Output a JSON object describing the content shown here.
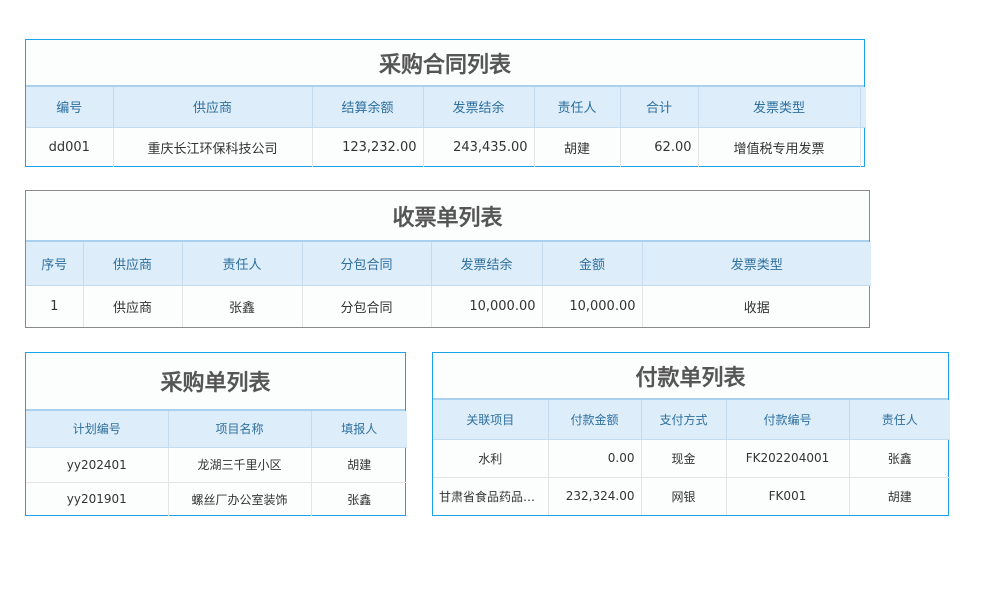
{
  "tables": [
    {
      "title": "采购合同列表",
      "columns": [
        "编号",
        "供应商",
        "结算余额",
        "发票结余",
        "责任人",
        "合计",
        "发票类型",
        ""
      ],
      "rows": [
        [
          "dd001",
          "重庆长江环保科技公司",
          "123,232.00",
          "243,435.00",
          "胡建",
          "62.00",
          "增值税专用发票",
          ""
        ]
      ]
    },
    {
      "title": "收票单列表",
      "columns": [
        "序号",
        "供应商",
        "责任人",
        "分包合同",
        "发票结余",
        "金额",
        "发票类型"
      ],
      "rows": [
        [
          "1",
          "供应商",
          "张鑫",
          "分包合同",
          "10,000.00",
          "10,000.00",
          "收据"
        ]
      ]
    },
    {
      "title": "采购单列表",
      "columns": [
        "计划编号",
        "项目名称",
        "填报人"
      ],
      "rows": [
        [
          "yy202401",
          "龙湖三千里小区",
          "胡建"
        ],
        [
          "yy201901",
          "螺丝厂办公室装饰",
          "张鑫"
        ]
      ]
    },
    {
      "title": "付款单列表",
      "columns": [
        "关联项目",
        "付款金额",
        "支付方式",
        "付款编号",
        "责任人"
      ],
      "rows": [
        [
          "水利",
          "0.00",
          "现金",
          "FK202204001",
          "张鑫"
        ],
        [
          "甘肃省食品药品监督管理局",
          "232,324.00",
          "网银",
          "FK001",
          "胡建"
        ]
      ]
    }
  ]
}
